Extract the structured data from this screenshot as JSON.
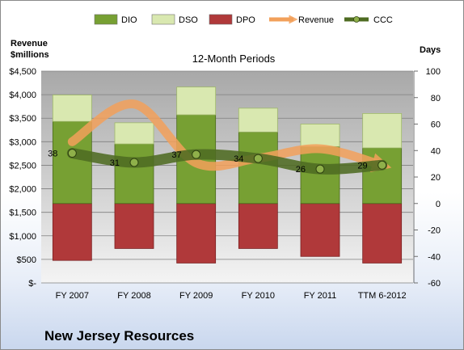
{
  "company_name": "New Jersey Resources",
  "colors": {
    "DIO": "#77a033",
    "DSO": "#d9e8b0",
    "DPO": "#b0393a",
    "Revenue": "#f2a05a",
    "CCC": "#4e6b22",
    "plot_bg_top": "#a8a8a8",
    "plot_bg_bottom": "#f4f4f4"
  },
  "chart_data": {
    "type": "bar",
    "title": "12-Month Periods",
    "left_axis_label": [
      "Revenue",
      "$millions"
    ],
    "right_axis_label": "Days",
    "categories": [
      "FY 2007",
      "FY 2008",
      "FY 2009",
      "FY 2010",
      "FY 2011",
      "TTM 6-2012"
    ],
    "left_axis": {
      "range": [
        0,
        4500
      ],
      "ticks": [
        0,
        500,
        1000,
        1500,
        2000,
        2500,
        3000,
        3500,
        4000,
        4500
      ],
      "tick_labels": [
        "$-",
        "$500",
        "$1,000",
        "$1,500",
        "$2,000",
        "$2,500",
        "$3,000",
        "$3,500",
        "$4,000",
        "$4,500"
      ]
    },
    "right_axis": {
      "range": [
        -60,
        100
      ],
      "ticks": [
        -60,
        -40,
        -20,
        0,
        20,
        40,
        60,
        80,
        100
      ],
      "tick_labels": [
        "-60",
        "-40",
        "-20",
        "0",
        "20",
        "40",
        "60",
        "80",
        "100"
      ]
    },
    "series": [
      {
        "name": "DIO",
        "kind": "stacked_bar",
        "axis": "right",
        "values": [
          62,
          45,
          67,
          54,
          43,
          42
        ]
      },
      {
        "name": "DSO",
        "kind": "stacked_bar",
        "axis": "right",
        "values": [
          20,
          16,
          21,
          18,
          17,
          26
        ]
      },
      {
        "name": "DPO",
        "kind": "negative_bar",
        "axis": "right",
        "values": [
          -43,
          -34,
          -45,
          -34,
          -40,
          -45
        ]
      },
      {
        "name": "Revenue",
        "kind": "line",
        "axis": "left",
        "values": [
          3000,
          3800,
          2550,
          2650,
          2850,
          2500
        ]
      },
      {
        "name": "CCC",
        "kind": "line",
        "axis": "right",
        "values": [
          38,
          31,
          37,
          34,
          26,
          29
        ]
      }
    ],
    "data_labels": [
      "38",
      "31",
      "37",
      "34",
      "26",
      "29"
    ],
    "legend": {
      "position": "top",
      "entries": [
        "DIO",
        "DSO",
        "DPO",
        "Revenue",
        "CCC"
      ]
    },
    "grid": true
  }
}
